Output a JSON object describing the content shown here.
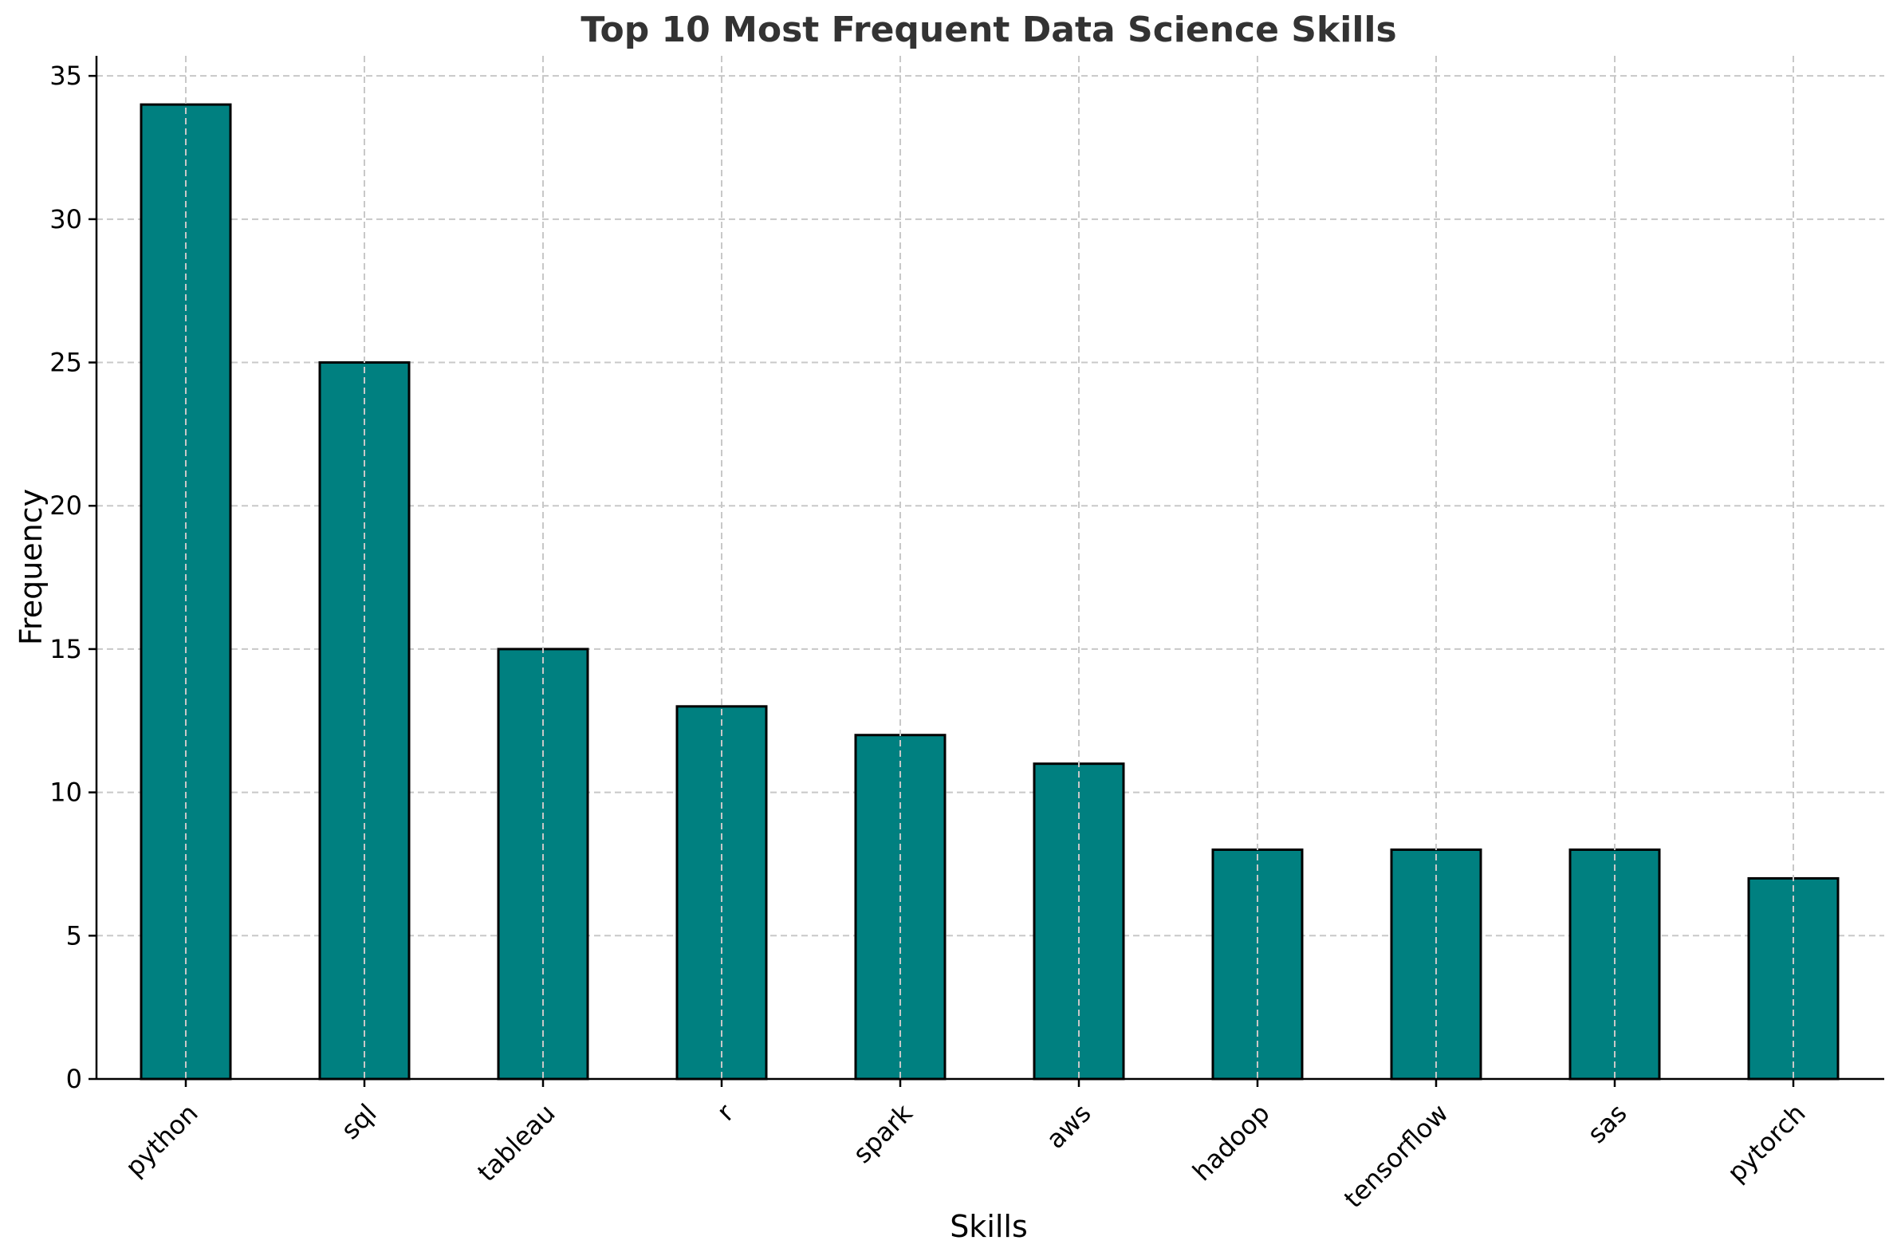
{
  "chart_data": {
    "type": "bar",
    "title": "Top 10 Most Frequent Data Science Skills",
    "xlabel": "Skills",
    "ylabel": "Frequency",
    "categories": [
      "python",
      "sql",
      "tableau",
      "r",
      "spark",
      "aws",
      "hadoop",
      "tensorflow",
      "sas",
      "pytorch"
    ],
    "values": [
      34,
      25,
      15,
      13,
      12,
      11,
      8,
      8,
      8,
      7
    ],
    "ylim": [
      0,
      35.7
    ],
    "yticks": [
      0,
      5,
      10,
      15,
      20,
      25,
      30,
      35
    ],
    "grid": true,
    "bar_color": "#008080",
    "edge_color": "#000000",
    "x_tick_rotation": 45
  }
}
